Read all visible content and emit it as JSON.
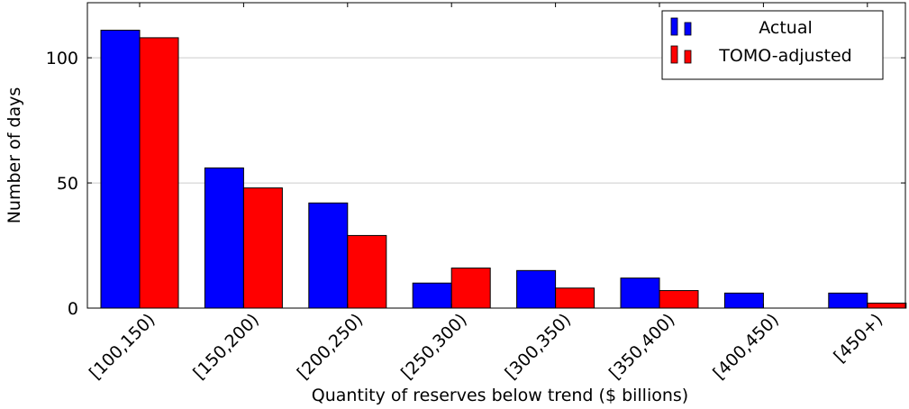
{
  "chart_data": {
    "type": "bar",
    "title": "",
    "xlabel": "Quantity of reserves below trend ($ billions)",
    "ylabel": "Number of days",
    "ylim": [
      0,
      122
    ],
    "yticks": [
      0,
      50,
      100
    ],
    "grid": "horizontal",
    "legend_position": "top-right",
    "categories": [
      "[100,150)",
      "[150,200)",
      "[200,250)",
      "[250,300)",
      "[300,350)",
      "[350,400)",
      "[400,450)",
      "[450+)"
    ],
    "series": [
      {
        "name": "Actual",
        "color": "#0000ff",
        "values": [
          111,
          56,
          42,
          10,
          15,
          12,
          6,
          6
        ]
      },
      {
        "name": "TOMO-adjusted",
        "color": "#ff0000",
        "values": [
          108,
          48,
          29,
          16,
          8,
          7,
          0,
          2
        ]
      }
    ]
  }
}
